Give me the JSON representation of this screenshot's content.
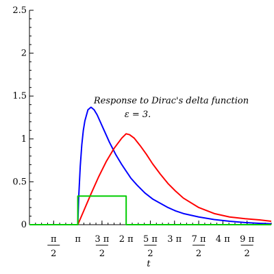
{
  "chart_data": {
    "type": "line",
    "xlabel": "t",
    "ylabel": "",
    "xlim": [
      0,
      15.71
    ],
    "ylim": [
      0,
      2.5
    ],
    "grid": false,
    "yticks": [
      {
        "value": 0,
        "label": "0"
      },
      {
        "value": 0.5,
        "label": "0.5"
      },
      {
        "value": 1,
        "label": "1"
      },
      {
        "value": 1.5,
        "label": "1.5"
      },
      {
        "value": 2,
        "label": "2"
      },
      {
        "value": 2.5,
        "label": "2.5"
      }
    ],
    "xticks": [
      {
        "value": 1.5708,
        "num": "π",
        "den": "2"
      },
      {
        "value": 3.1416,
        "num": "π",
        "den": ""
      },
      {
        "value": 4.7124,
        "num": "3 π",
        "den": "2"
      },
      {
        "value": 6.2832,
        "num": "2 π",
        "den": ""
      },
      {
        "value": 7.854,
        "num": "5 π",
        "den": "2"
      },
      {
        "value": 9.4248,
        "num": "3 π",
        "den": ""
      },
      {
        "value": 10.9956,
        "num": "7 π",
        "den": "2"
      },
      {
        "value": 12.5664,
        "num": "4 π",
        "den": ""
      },
      {
        "value": 14.1372,
        "num": "9 π",
        "den": "2"
      }
    ],
    "annotation": {
      "line1": "Response to Dirac's delta function",
      "line2": "ε  = 3."
    },
    "series": [
      {
        "color": "#0000ff",
        "x": [
          0,
          3.14,
          3.2,
          3.3,
          3.4,
          3.5,
          3.6,
          3.8,
          4.0,
          4.2,
          4.4,
          4.6,
          4.8,
          5.0,
          5.2,
          5.4,
          5.6,
          5.8,
          6.0,
          6.3,
          6.6,
          7.0,
          7.5,
          8.0,
          8.5,
          9.0,
          9.5,
          10.0,
          11.0,
          12.0,
          13.0,
          14.0,
          15.0,
          15.71
        ],
        "y": [
          0,
          0,
          0.32,
          0.68,
          0.93,
          1.1,
          1.21,
          1.34,
          1.37,
          1.34,
          1.28,
          1.2,
          1.12,
          1.04,
          0.96,
          0.89,
          0.82,
          0.76,
          0.7,
          0.62,
          0.54,
          0.46,
          0.37,
          0.3,
          0.25,
          0.2,
          0.16,
          0.13,
          0.09,
          0.06,
          0.04,
          0.025,
          0.015,
          0.01
        ]
      },
      {
        "color": "#ff0000",
        "x": [
          0,
          3.14,
          3.5,
          4.0,
          4.5,
          5.0,
          5.5,
          6.0,
          6.28,
          6.5,
          6.8,
          7.2,
          7.6,
          8.0,
          8.5,
          9.0,
          9.5,
          10.0,
          11.0,
          12.0,
          13.0,
          14.0,
          15.0,
          15.71
        ],
        "y": [
          0,
          0,
          0.15,
          0.36,
          0.56,
          0.74,
          0.89,
          1.01,
          1.06,
          1.05,
          1.01,
          0.92,
          0.82,
          0.71,
          0.59,
          0.48,
          0.39,
          0.31,
          0.2,
          0.13,
          0.09,
          0.07,
          0.055,
          0.04
        ]
      },
      {
        "color": "#00cc00",
        "x": [
          0,
          3.1416,
          3.1416,
          6.2832,
          6.2832,
          15.71
        ],
        "y": [
          0,
          0,
          0.333,
          0.333,
          0,
          0
        ]
      }
    ]
  }
}
